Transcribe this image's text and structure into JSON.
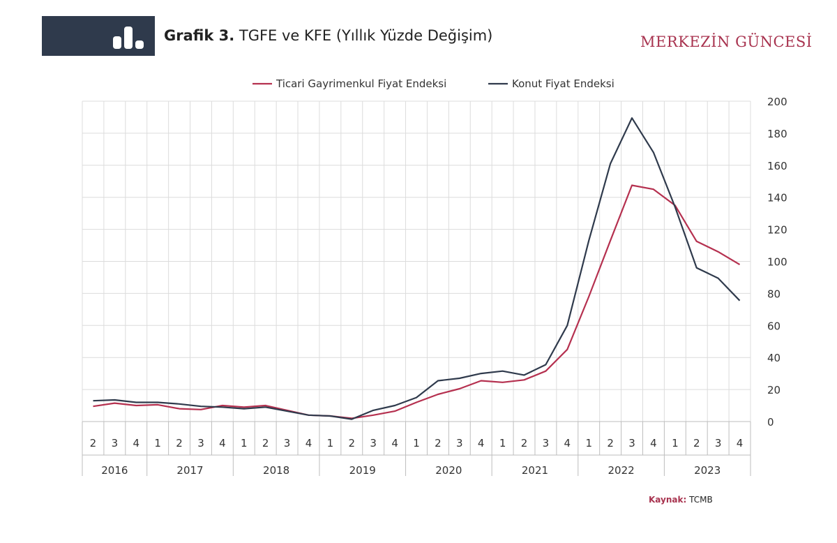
{
  "header": {
    "title_bold": "Grafik 3.",
    "title_rest": " TGFE ve KFE (Yıllık Yüzde Değişim)",
    "brand": "MERKEZİN GÜNCESİ",
    "icon": "bar-chart-icon"
  },
  "footer": {
    "source_label": "Kaynak:",
    "source_value": "TCMB"
  },
  "colors": {
    "header_band": "#2f3a4c",
    "brand": "#a8334f",
    "tgfe": "#b5304f",
    "kfe": "#2f3a4c",
    "grid": "#dcdcdc"
  },
  "chart_data": {
    "type": "line",
    "title": "TGFE ve KFE (Yıllık Yüzde Değişim)",
    "quarters": [
      "2",
      "3",
      "4",
      "1",
      "2",
      "3",
      "4",
      "1",
      "2",
      "3",
      "4",
      "1",
      "2",
      "3",
      "4",
      "1",
      "2",
      "3",
      "4",
      "1",
      "2",
      "3",
      "4",
      "1",
      "2",
      "3",
      "4",
      "1",
      "2",
      "3",
      "4"
    ],
    "years": [
      {
        "label": "2016",
        "count": 3
      },
      {
        "label": "2017",
        "count": 4
      },
      {
        "label": "2018",
        "count": 4
      },
      {
        "label": "2019",
        "count": 4
      },
      {
        "label": "2020",
        "count": 4
      },
      {
        "label": "2021",
        "count": 4
      },
      {
        "label": "2022",
        "count": 4
      },
      {
        "label": "2023",
        "count": 4
      }
    ],
    "ylim": [
      0,
      200
    ],
    "yticks": [
      0,
      20,
      40,
      60,
      80,
      100,
      120,
      140,
      160,
      180,
      200
    ],
    "y_axis_side": "right",
    "grid": true,
    "legend_position": "top",
    "series": [
      {
        "name": "Ticari Gayrimenkul Fiyat Endeksi",
        "color": "#b5304f",
        "values": [
          9.5,
          11.5,
          10,
          10.5,
          8,
          7.5,
          10,
          9,
          10,
          7,
          4,
          3.5,
          2,
          4,
          6.5,
          12,
          17,
          20.5,
          25.5,
          24.5,
          26,
          31.5,
          45,
          78,
          113,
          147.5,
          145,
          135,
          112.5,
          106,
          98
        ]
      },
      {
        "name": "Konut Fiyat Endeksi",
        "color": "#2f3a4c",
        "values": [
          13,
          13.5,
          12,
          12,
          11,
          9.5,
          9,
          8,
          9,
          6.5,
          4,
          3.5,
          1.5,
          7,
          10,
          15,
          25.5,
          27,
          30,
          31.5,
          29,
          35.5,
          60,
          113,
          161,
          189.5,
          168,
          134,
          96,
          89.5,
          75.5
        ]
      }
    ]
  }
}
